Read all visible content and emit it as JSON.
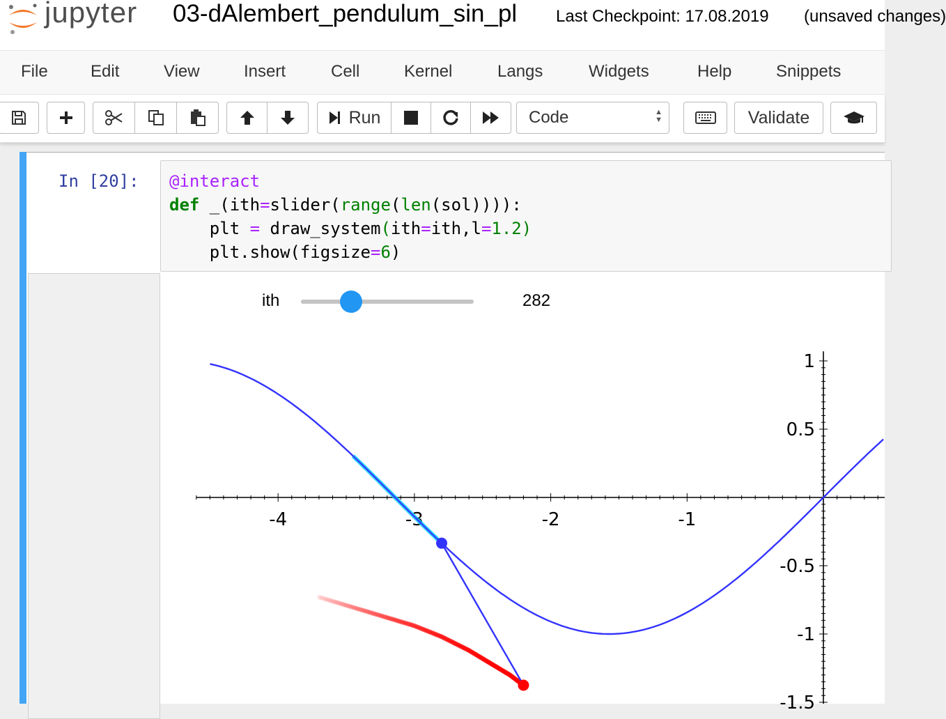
{
  "header": {
    "brand": "jupyter",
    "notebook_name": "03-dAlembert_pendulum_sin_pl",
    "checkpoint": "Last Checkpoint: 17.08.2019",
    "unsaved": "(unsaved changes)"
  },
  "menu": [
    "File",
    "Edit",
    "View",
    "Insert",
    "Cell",
    "Kernel",
    "Langs",
    "Widgets",
    "Help",
    "Snippets"
  ],
  "toolbar": {
    "run_label": "Run",
    "cell_type": "Code",
    "validate_label": "Validate",
    "icons": [
      "save-icon",
      "plus-icon",
      "cut-icon",
      "copy-icon",
      "paste-icon",
      "arrow-up-icon",
      "arrow-down-icon",
      "run-icon",
      "stop-icon",
      "restart-icon",
      "fast-forward-icon",
      "keyboard-icon",
      "graduation-cap-icon"
    ]
  },
  "cell": {
    "prompt": "In [20]:",
    "code_lines": [
      "@interact",
      "def _(ith=slider(range(len(sol)))):",
      "    plt = draw_system(ith=ith,l=1.2)",
      "    plt.show(figsize=6)"
    ]
  },
  "widget": {
    "label": "ith",
    "value": "282",
    "position_fraction": 0.29
  },
  "colors": {
    "accent": "#42a5f5",
    "slider_handle": "#2196f3",
    "curve": "#3333ff",
    "trail": "#ff0000",
    "highlight": "#00ccff"
  },
  "chart_data": {
    "type": "line",
    "x_ticks": [
      "-4",
      "-3",
      "-2",
      "-1"
    ],
    "y_ticks": [
      "1",
      "0.5",
      "-0.5",
      "-1",
      "-1.5"
    ],
    "xlim": [
      -4.6,
      0.45
    ],
    "ylim": [
      -1.5,
      1.05
    ],
    "series": [
      {
        "kind": "curve",
        "description": "y = sin(x)",
        "x_range": [
          -4.5,
          0.45
        ]
      },
      {
        "kind": "highlight",
        "x_range": [
          -3.45,
          -2.8
        ]
      },
      {
        "kind": "pendulum",
        "pivot": [
          -2.8,
          -0.335
        ],
        "bob": [
          -2.2,
          -1.375
        ]
      },
      {
        "kind": "trail",
        "x": [
          -3.7,
          -3.6,
          -3.5,
          -3.4,
          -3.3,
          -3.2,
          -3.1,
          -3.0,
          -2.9,
          -2.8,
          -2.7,
          -2.6,
          -2.5,
          -2.4,
          -2.3,
          -2.2
        ],
        "y": [
          -0.73,
          -0.76,
          -0.79,
          -0.82,
          -0.85,
          -0.88,
          -0.91,
          -0.94,
          -0.98,
          -1.02,
          -1.07,
          -1.12,
          -1.18,
          -1.24,
          -1.3,
          -1.375
        ]
      }
    ]
  }
}
